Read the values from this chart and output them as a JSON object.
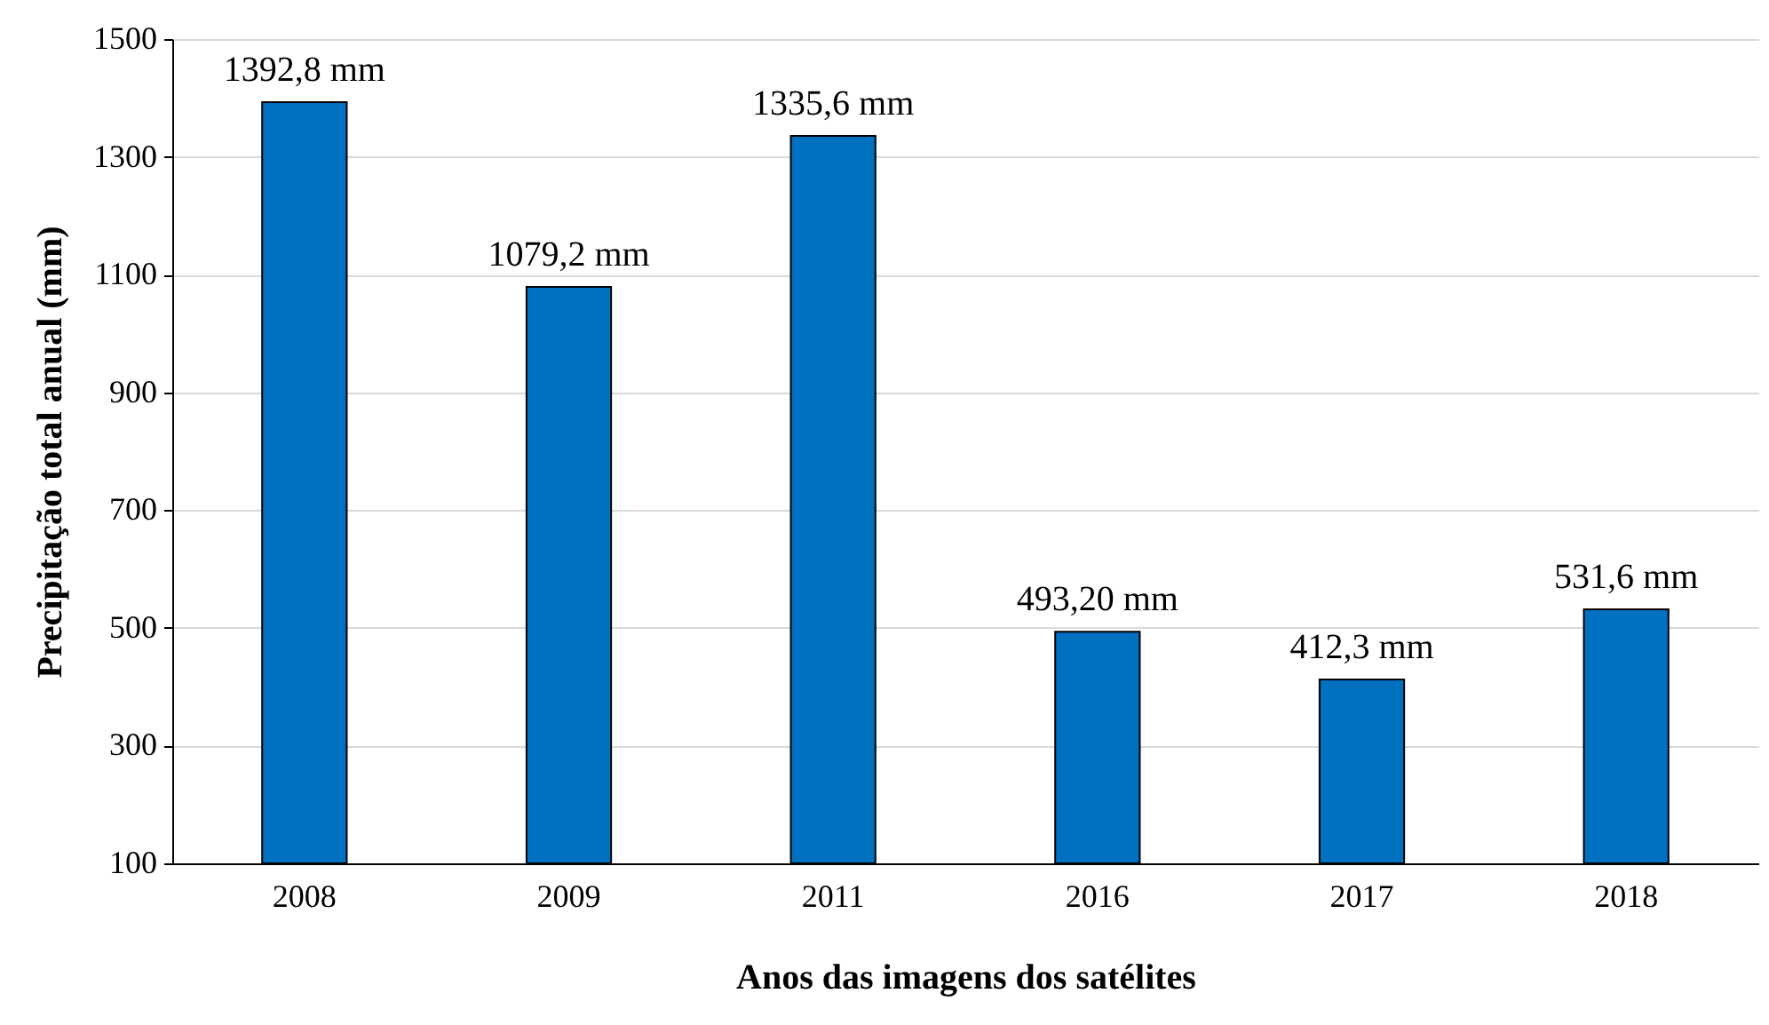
{
  "chart_data": {
    "type": "bar",
    "xlabel": "Anos das imagens dos satélites",
    "ylabel": "Precipitação total anual  (mm)",
    "categories": [
      "2008",
      "2009",
      "2011",
      "2016",
      "2017",
      "2018"
    ],
    "values": [
      1392.8,
      1079.2,
      1335.6,
      493.2,
      412.3,
      531.6
    ],
    "value_labels": [
      "1392,8 mm",
      "1079,2 mm",
      "1335,6 mm",
      "493,20 mm",
      "412,3 mm",
      "531,6 mm"
    ],
    "color": "#0070c0",
    "ylim": [
      100,
      1500
    ],
    "yticks": [
      100,
      300,
      500,
      700,
      900,
      1100,
      1300,
      1500
    ],
    "grid": "y"
  }
}
